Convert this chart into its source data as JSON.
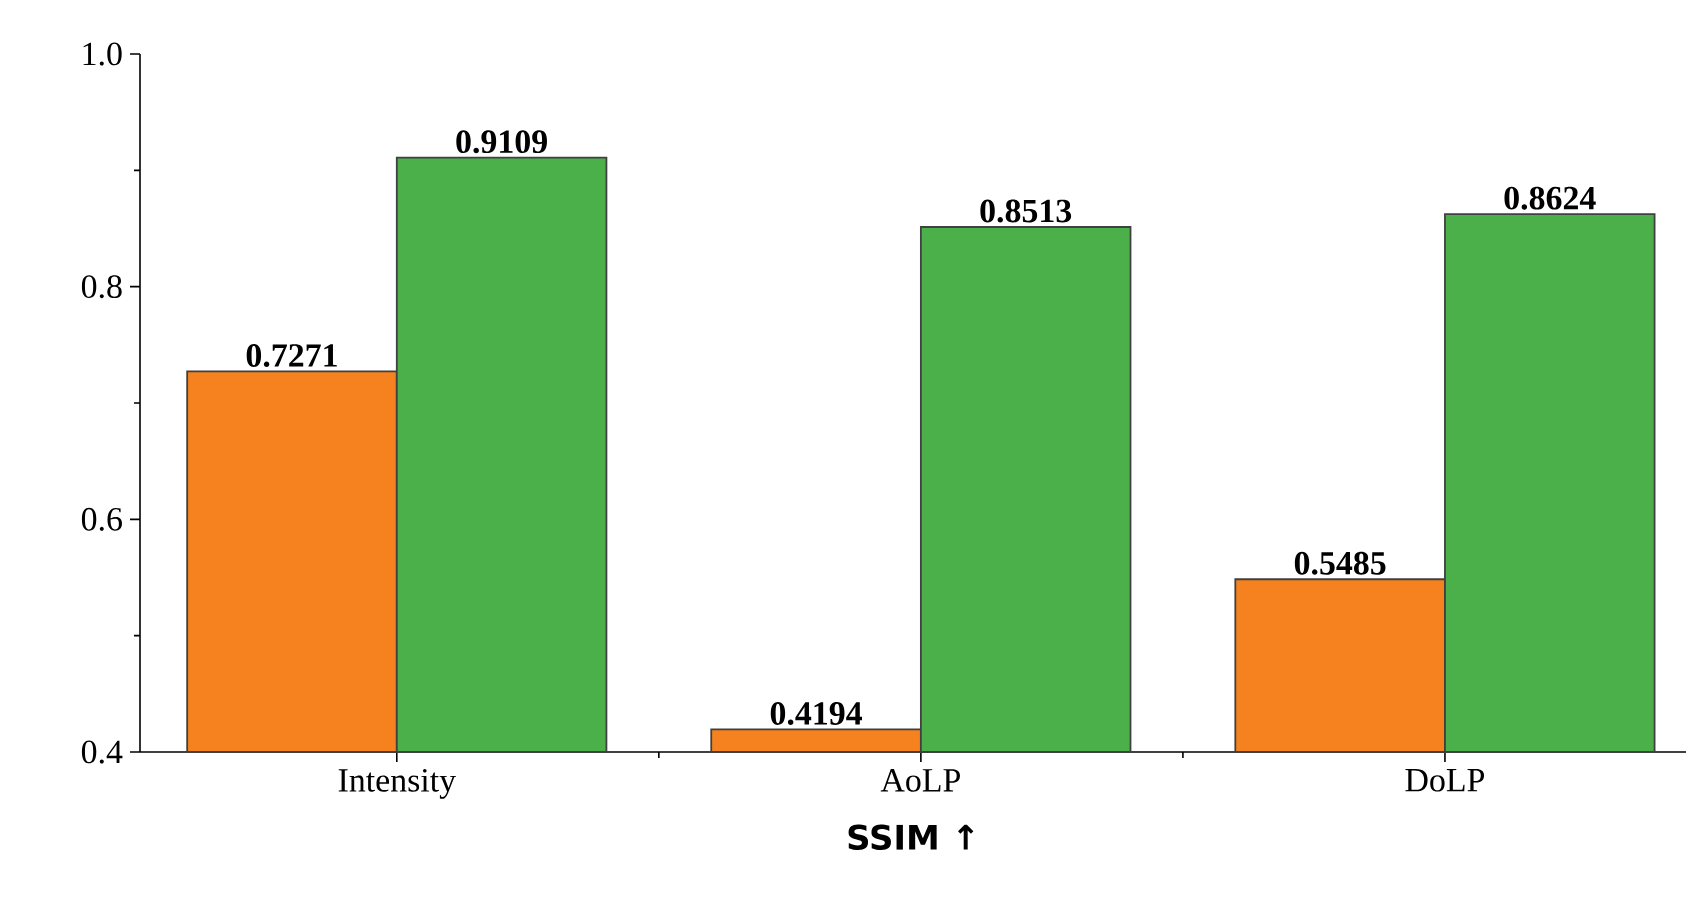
{
  "chart_data": {
    "type": "bar",
    "xlabel": "SSIM ↑",
    "categories": [
      "Intensity",
      "AoLP",
      "DoLP"
    ],
    "series": [
      {
        "color": "#f5821f",
        "values": [
          0.7271,
          0.4194,
          0.5485
        ]
      },
      {
        "color": "#4cb04a",
        "values": [
          0.9109,
          0.8513,
          0.8624
        ]
      }
    ],
    "ylim": [
      0.4,
      1.0
    ],
    "yticks": [
      0.4,
      0.6,
      0.8,
      {
        "value": 1.0,
        "label": "1.0"
      }
    ],
    "data_labels": true,
    "grid": false
  }
}
